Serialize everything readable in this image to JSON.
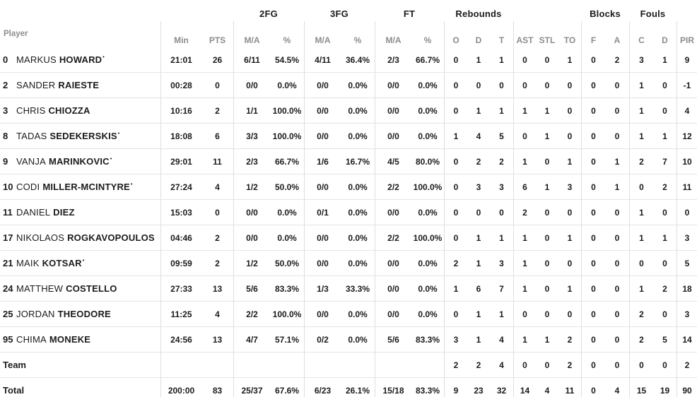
{
  "starter_mark": "•",
  "colors": {
    "text": "#1b1b1e",
    "muted_header": "#8c8c91",
    "grid_line": "#e4e4e6",
    "background": "#ffffff"
  },
  "header": {
    "player_label": "Player",
    "groups": [
      {
        "label": "2FG"
      },
      {
        "label": "3FG"
      },
      {
        "label": "FT"
      },
      {
        "label": "Rebounds"
      },
      {
        "label": "Blocks"
      },
      {
        "label": "Fouls"
      }
    ],
    "cols": {
      "min": "Min",
      "pts": "PTS",
      "fg2_ma": "M/A",
      "fg2_pct": "%",
      "fg3_ma": "M/A",
      "fg3_pct": "%",
      "ft_ma": "M/A",
      "ft_pct": "%",
      "reb_o": "O",
      "reb_d": "D",
      "reb_t": "T",
      "ast": "AST",
      "stl": "STL",
      "to": "TO",
      "blk_f": "F",
      "blk_a": "A",
      "foul_c": "C",
      "foul_d": "D",
      "pir": "PIR"
    }
  },
  "rows": [
    {
      "type": "player",
      "num": "0",
      "first": "MARKUS",
      "last": "HOWARD",
      "starter": true,
      "min": "21:01",
      "pts": "26",
      "fg2_ma": "6/11",
      "fg2_pct": "54.5%",
      "fg3_ma": "4/11",
      "fg3_pct": "36.4%",
      "ft_ma": "2/3",
      "ft_pct": "66.7%",
      "reb_o": "0",
      "reb_d": "1",
      "reb_t": "1",
      "ast": "0",
      "stl": "0",
      "to": "1",
      "blk_f": "0",
      "blk_a": "2",
      "foul_c": "3",
      "foul_d": "1",
      "pir": "9"
    },
    {
      "type": "player",
      "num": "2",
      "first": "SANDER",
      "last": "RAIESTE",
      "starter": false,
      "min": "00:28",
      "pts": "0",
      "fg2_ma": "0/0",
      "fg2_pct": "0.0%",
      "fg3_ma": "0/0",
      "fg3_pct": "0.0%",
      "ft_ma": "0/0",
      "ft_pct": "0.0%",
      "reb_o": "0",
      "reb_d": "0",
      "reb_t": "0",
      "ast": "0",
      "stl": "0",
      "to": "0",
      "blk_f": "0",
      "blk_a": "0",
      "foul_c": "1",
      "foul_d": "0",
      "pir": "-1"
    },
    {
      "type": "player",
      "num": "3",
      "first": "CHRIS",
      "last": "CHIOZZA",
      "starter": false,
      "min": "10:16",
      "pts": "2",
      "fg2_ma": "1/1",
      "fg2_pct": "100.0%",
      "fg3_ma": "0/0",
      "fg3_pct": "0.0%",
      "ft_ma": "0/0",
      "ft_pct": "0.0%",
      "reb_o": "0",
      "reb_d": "1",
      "reb_t": "1",
      "ast": "1",
      "stl": "1",
      "to": "0",
      "blk_f": "0",
      "blk_a": "0",
      "foul_c": "1",
      "foul_d": "0",
      "pir": "4"
    },
    {
      "type": "player",
      "num": "8",
      "first": "TADAS",
      "last": "SEDEKERSKIS",
      "starter": true,
      "min": "18:08",
      "pts": "6",
      "fg2_ma": "3/3",
      "fg2_pct": "100.0%",
      "fg3_ma": "0/0",
      "fg3_pct": "0.0%",
      "ft_ma": "0/0",
      "ft_pct": "0.0%",
      "reb_o": "1",
      "reb_d": "4",
      "reb_t": "5",
      "ast": "0",
      "stl": "1",
      "to": "0",
      "blk_f": "0",
      "blk_a": "0",
      "foul_c": "1",
      "foul_d": "1",
      "pir": "12"
    },
    {
      "type": "player",
      "num": "9",
      "first": "VANJA",
      "last": "MARINKOVIC",
      "starter": true,
      "min": "29:01",
      "pts": "11",
      "fg2_ma": "2/3",
      "fg2_pct": "66.7%",
      "fg3_ma": "1/6",
      "fg3_pct": "16.7%",
      "ft_ma": "4/5",
      "ft_pct": "80.0%",
      "reb_o": "0",
      "reb_d": "2",
      "reb_t": "2",
      "ast": "1",
      "stl": "0",
      "to": "1",
      "blk_f": "0",
      "blk_a": "1",
      "foul_c": "2",
      "foul_d": "7",
      "pir": "10"
    },
    {
      "type": "player",
      "num": "10",
      "first": "CODI",
      "last": "MILLER-MCINTYRE",
      "starter": true,
      "min": "27:24",
      "pts": "4",
      "fg2_ma": "1/2",
      "fg2_pct": "50.0%",
      "fg3_ma": "0/0",
      "fg3_pct": "0.0%",
      "ft_ma": "2/2",
      "ft_pct": "100.0%",
      "reb_o": "0",
      "reb_d": "3",
      "reb_t": "3",
      "ast": "6",
      "stl": "1",
      "to": "3",
      "blk_f": "0",
      "blk_a": "1",
      "foul_c": "0",
      "foul_d": "2",
      "pir": "11"
    },
    {
      "type": "player",
      "num": "11",
      "first": "DANIEL",
      "last": "DIEZ",
      "starter": false,
      "min": "15:03",
      "pts": "0",
      "fg2_ma": "0/0",
      "fg2_pct": "0.0%",
      "fg3_ma": "0/1",
      "fg3_pct": "0.0%",
      "ft_ma": "0/0",
      "ft_pct": "0.0%",
      "reb_o": "0",
      "reb_d": "0",
      "reb_t": "0",
      "ast": "2",
      "stl": "0",
      "to": "0",
      "blk_f": "0",
      "blk_a": "0",
      "foul_c": "1",
      "foul_d": "0",
      "pir": "0"
    },
    {
      "type": "player",
      "num": "17",
      "first": "NIKOLAOS",
      "last": "ROGKAVOPOULOS",
      "starter": false,
      "min": "04:46",
      "pts": "2",
      "fg2_ma": "0/0",
      "fg2_pct": "0.0%",
      "fg3_ma": "0/0",
      "fg3_pct": "0.0%",
      "ft_ma": "2/2",
      "ft_pct": "100.0%",
      "reb_o": "0",
      "reb_d": "1",
      "reb_t": "1",
      "ast": "1",
      "stl": "0",
      "to": "1",
      "blk_f": "0",
      "blk_a": "0",
      "foul_c": "1",
      "foul_d": "1",
      "pir": "3"
    },
    {
      "type": "player",
      "num": "21",
      "first": "MAIK",
      "last": "KOTSAR",
      "starter": true,
      "min": "09:59",
      "pts": "2",
      "fg2_ma": "1/2",
      "fg2_pct": "50.0%",
      "fg3_ma": "0/0",
      "fg3_pct": "0.0%",
      "ft_ma": "0/0",
      "ft_pct": "0.0%",
      "reb_o": "2",
      "reb_d": "1",
      "reb_t": "3",
      "ast": "1",
      "stl": "0",
      "to": "0",
      "blk_f": "0",
      "blk_a": "0",
      "foul_c": "0",
      "foul_d": "0",
      "pir": "5"
    },
    {
      "type": "player",
      "num": "24",
      "first": "MATTHEW",
      "last": "COSTELLO",
      "starter": false,
      "min": "27:33",
      "pts": "13",
      "fg2_ma": "5/6",
      "fg2_pct": "83.3%",
      "fg3_ma": "1/3",
      "fg3_pct": "33.3%",
      "ft_ma": "0/0",
      "ft_pct": "0.0%",
      "reb_o": "1",
      "reb_d": "6",
      "reb_t": "7",
      "ast": "1",
      "stl": "0",
      "to": "1",
      "blk_f": "0",
      "blk_a": "0",
      "foul_c": "1",
      "foul_d": "2",
      "pir": "18"
    },
    {
      "type": "player",
      "num": "25",
      "first": "JORDAN",
      "last": "THEODORE",
      "starter": false,
      "min": "11:25",
      "pts": "4",
      "fg2_ma": "2/2",
      "fg2_pct": "100.0%",
      "fg3_ma": "0/0",
      "fg3_pct": "0.0%",
      "ft_ma": "0/0",
      "ft_pct": "0.0%",
      "reb_o": "0",
      "reb_d": "1",
      "reb_t": "1",
      "ast": "0",
      "stl": "0",
      "to": "0",
      "blk_f": "0",
      "blk_a": "0",
      "foul_c": "2",
      "foul_d": "0",
      "pir": "3"
    },
    {
      "type": "player",
      "num": "95",
      "first": "CHIMA",
      "last": "MONEKE",
      "starter": false,
      "min": "24:56",
      "pts": "13",
      "fg2_ma": "4/7",
      "fg2_pct": "57.1%",
      "fg3_ma": "0/2",
      "fg3_pct": "0.0%",
      "ft_ma": "5/6",
      "ft_pct": "83.3%",
      "reb_o": "3",
      "reb_d": "1",
      "reb_t": "4",
      "ast": "1",
      "stl": "1",
      "to": "2",
      "blk_f": "0",
      "blk_a": "0",
      "foul_c": "2",
      "foul_d": "5",
      "pir": "14"
    },
    {
      "type": "team",
      "label": "Team",
      "min": "",
      "pts": "",
      "fg2_ma": "",
      "fg2_pct": "",
      "fg3_ma": "",
      "fg3_pct": "",
      "ft_ma": "",
      "ft_pct": "",
      "reb_o": "2",
      "reb_d": "2",
      "reb_t": "4",
      "ast": "0",
      "stl": "0",
      "to": "2",
      "blk_f": "0",
      "blk_a": "0",
      "foul_c": "0",
      "foul_d": "0",
      "pir": "2"
    },
    {
      "type": "total",
      "label": "Total",
      "min": "200:00",
      "pts": "83",
      "fg2_ma": "25/37",
      "fg2_pct": "67.6%",
      "fg3_ma": "6/23",
      "fg3_pct": "26.1%",
      "ft_ma": "15/18",
      "ft_pct": "83.3%",
      "reb_o": "9",
      "reb_d": "23",
      "reb_t": "32",
      "ast": "14",
      "stl": "4",
      "to": "11",
      "blk_f": "0",
      "blk_a": "4",
      "foul_c": "15",
      "foul_d": "19",
      "pir": "90"
    }
  ]
}
